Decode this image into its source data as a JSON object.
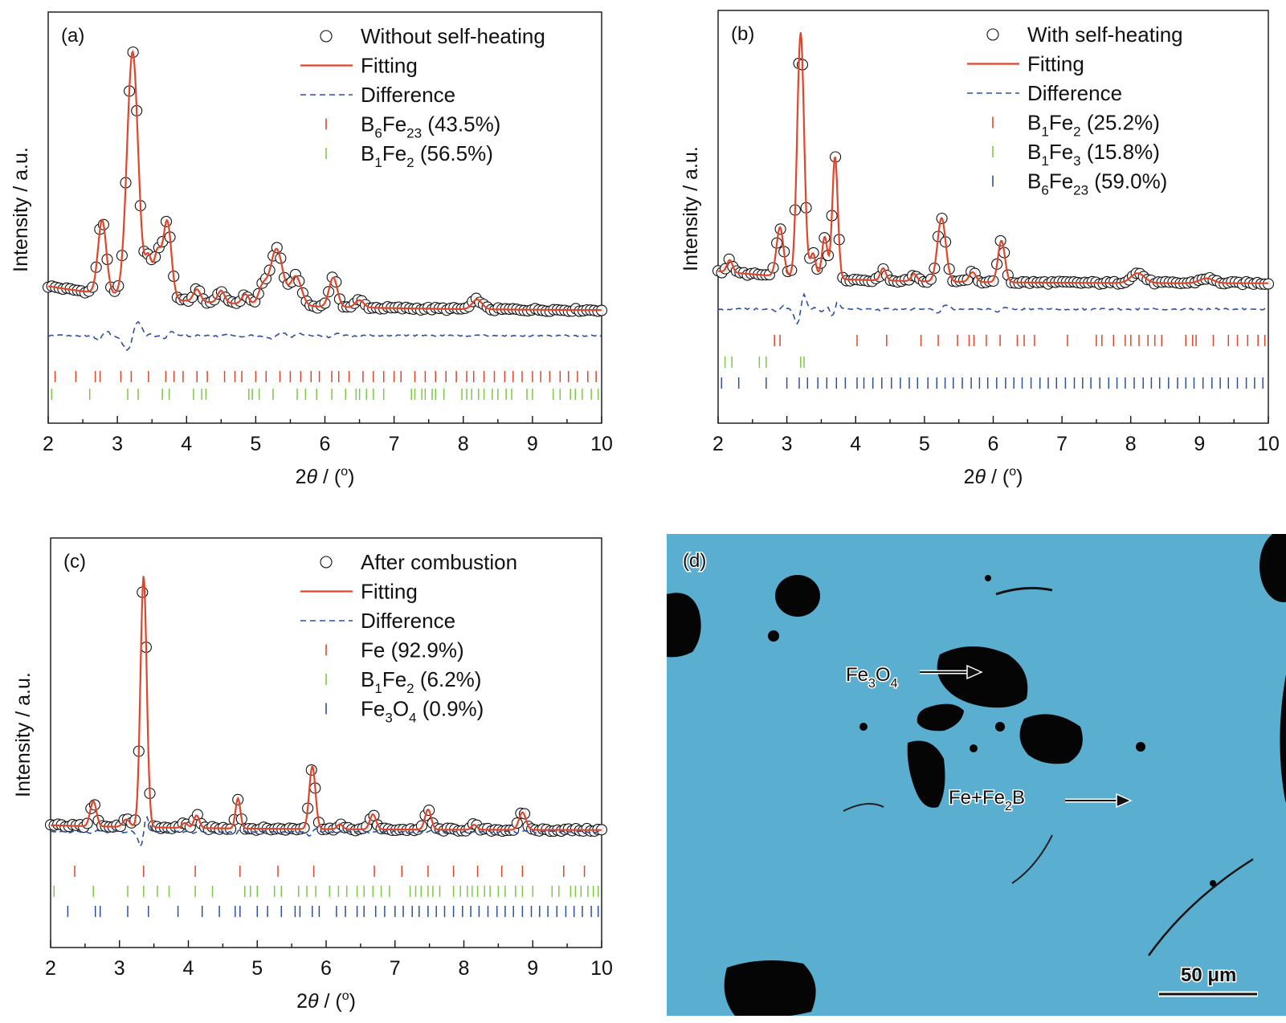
{
  "chart_data": [
    {
      "type": "line",
      "panel_label": "(a)",
      "xlabel_prefix": "2",
      "xlabel_theta": "θ",
      "xlabel_suffix": " / (",
      "xlabel_degree": "o",
      "xlabel_close": ")",
      "ylabel": "Intensity / a.u.",
      "xlim": [
        2,
        10
      ],
      "xticks": [
        "2",
        "3",
        "4",
        "5",
        "6",
        "7",
        "8",
        "9",
        "10"
      ],
      "legend_position": "top-right",
      "legend": {
        "observed": "Without self-heating",
        "fitting": "Fitting",
        "difference": "Difference",
        "phases": [
          {
            "base": "B",
            "sub1": "6",
            "mid": "Fe",
            "sub2": "23",
            "tail": " (43.5%)",
            "color": "#e0452a"
          },
          {
            "base": "B",
            "sub1": "1",
            "mid": "Fe",
            "sub2": "2",
            "tail": " (56.5%)",
            "color": "#7ac943"
          }
        ]
      },
      "peaks": [
        {
          "x": 2.78,
          "y": 0.3,
          "w": 0.06
        },
        {
          "x": 3.22,
          "y": 1.0,
          "w": 0.08
        },
        {
          "x": 3.45,
          "y": 0.16,
          "w": 0.05
        },
        {
          "x": 3.58,
          "y": 0.18,
          "w": 0.05
        },
        {
          "x": 3.72,
          "y": 0.32,
          "w": 0.06
        },
        {
          "x": 4.15,
          "y": 0.05,
          "w": 0.05
        },
        {
          "x": 4.5,
          "y": 0.05,
          "w": 0.05
        },
        {
          "x": 4.85,
          "y": 0.04,
          "w": 0.05
        },
        {
          "x": 5.1,
          "y": 0.07,
          "w": 0.06
        },
        {
          "x": 5.3,
          "y": 0.23,
          "w": 0.09
        },
        {
          "x": 5.58,
          "y": 0.12,
          "w": 0.08
        },
        {
          "x": 6.12,
          "y": 0.12,
          "w": 0.06
        },
        {
          "x": 6.5,
          "y": 0.03,
          "w": 0.06
        },
        {
          "x": 8.2,
          "y": 0.04,
          "w": 0.07
        }
      ],
      "background": {
        "y_start": 0.1,
        "y_end": 0.0,
        "knee": 0.6
      },
      "phase_ticks": [
        [
          2.1,
          2.4,
          2.68,
          2.75,
          3.05,
          3.2,
          3.45,
          3.7,
          3.82,
          3.95,
          4.15,
          4.3,
          4.55,
          4.7,
          4.8,
          5.0,
          5.15,
          5.35,
          5.5,
          5.65,
          5.8,
          5.92,
          6.1,
          6.2,
          6.35,
          6.55,
          6.7,
          6.85,
          7.0,
          7.1,
          7.3,
          7.45,
          7.6,
          7.75,
          7.9,
          8.05,
          8.15,
          8.3,
          8.45,
          8.6,
          8.72,
          8.85,
          9.0,
          9.12,
          9.25,
          9.4,
          9.52,
          9.65,
          9.8,
          9.92
        ],
        [
          2.05,
          2.6,
          3.15,
          3.3,
          3.65,
          3.75,
          4.1,
          4.22,
          4.28,
          4.9,
          4.95,
          5.05,
          5.25,
          5.6,
          5.72,
          5.88,
          6.1,
          6.3,
          6.45,
          6.5,
          6.6,
          6.7,
          6.85,
          7.25,
          7.3,
          7.4,
          7.45,
          7.55,
          7.6,
          7.72,
          7.98,
          8.05,
          8.12,
          8.22,
          8.3,
          8.42,
          8.5,
          8.62,
          8.7,
          8.92,
          9.0,
          9.3,
          9.4,
          9.55,
          9.62,
          9.72,
          9.85,
          9.95
        ]
      ]
    },
    {
      "type": "line",
      "panel_label": "(b)",
      "xlabel_prefix": "2",
      "xlabel_theta": "θ",
      "xlabel_suffix": " / (",
      "xlabel_degree": "o",
      "xlabel_close": ")",
      "ylabel": "Intensity / a.u.",
      "xlim": [
        2,
        10
      ],
      "xticks": [
        "2",
        "3",
        "4",
        "5",
        "6",
        "7",
        "8",
        "9",
        "10"
      ],
      "legend_position": "top-right",
      "legend": {
        "observed": "With self-heating",
        "fitting": "Fitting",
        "difference": "Difference",
        "phases": [
          {
            "base": "B",
            "sub1": "1",
            "mid": "Fe",
            "sub2": "2",
            "tail": " (25.2%)",
            "color": "#e0452a"
          },
          {
            "base": "B",
            "sub1": "1",
            "mid": "Fe",
            "sub2": "3",
            "tail": " (15.8%)",
            "color": "#7ac943"
          },
          {
            "base": "B",
            "sub1": "6",
            "mid": "Fe",
            "sub2": "23",
            "tail": " (59.0%)",
            "color": "#2d4fa0"
          }
        ]
      },
      "peaks": [
        {
          "x": 2.17,
          "y": 0.05,
          "w": 0.04
        },
        {
          "x": 2.9,
          "y": 0.2,
          "w": 0.05
        },
        {
          "x": 3.2,
          "y": 1.0,
          "w": 0.05
        },
        {
          "x": 3.38,
          "y": 0.1,
          "w": 0.04
        },
        {
          "x": 3.55,
          "y": 0.17,
          "w": 0.04
        },
        {
          "x": 3.7,
          "y": 0.5,
          "w": 0.04
        },
        {
          "x": 4.4,
          "y": 0.05,
          "w": 0.04
        },
        {
          "x": 4.85,
          "y": 0.03,
          "w": 0.04
        },
        {
          "x": 5.25,
          "y": 0.26,
          "w": 0.06
        },
        {
          "x": 5.7,
          "y": 0.04,
          "w": 0.05
        },
        {
          "x": 6.12,
          "y": 0.17,
          "w": 0.05
        },
        {
          "x": 8.1,
          "y": 0.04,
          "w": 0.1
        },
        {
          "x": 9.1,
          "y": 0.02,
          "w": 0.1
        }
      ],
      "background": {
        "y_start": 0.08,
        "y_end": 0.03,
        "knee": 0.8
      },
      "phase_ticks": [
        [
          2.82,
          2.9,
          4.02,
          4.45,
          4.95,
          5.2,
          5.48,
          5.65,
          5.72,
          5.9,
          6.1,
          6.35,
          6.45,
          6.6,
          7.08,
          7.5,
          7.58,
          7.75,
          7.92,
          8.0,
          8.12,
          8.25,
          8.35,
          8.45,
          8.8,
          8.9,
          8.95,
          9.2,
          9.42,
          9.55,
          9.7,
          9.85,
          9.95
        ],
        [
          2.1,
          2.2,
          2.6,
          2.7,
          3.2,
          3.25
        ],
        [
          2.05,
          2.3,
          2.7,
          3.0,
          3.18,
          3.3,
          3.45,
          3.58,
          3.72,
          3.85,
          4.02,
          4.12,
          4.25,
          4.38,
          4.52,
          4.65,
          4.78,
          4.9,
          5.05,
          5.18,
          5.3,
          5.42,
          5.55,
          5.68,
          5.8,
          5.92,
          6.05,
          6.18,
          6.3,
          6.42,
          6.55,
          6.68,
          6.8,
          6.92,
          7.05,
          7.18,
          7.3,
          7.42,
          7.55,
          7.68,
          7.8,
          7.92,
          8.05,
          8.18,
          8.3,
          8.42,
          8.55,
          8.68,
          8.8,
          8.92,
          9.05,
          9.18,
          9.3,
          9.42,
          9.55,
          9.68,
          9.8,
          9.92
        ]
      ]
    },
    {
      "type": "line",
      "panel_label": "(c)",
      "xlabel_prefix": "2",
      "xlabel_theta": "θ",
      "xlabel_suffix": " / (",
      "xlabel_degree": "o",
      "xlabel_close": ")",
      "ylabel": "Intensity / a.u.",
      "xlim": [
        2,
        10
      ],
      "xticks": [
        "2",
        "3",
        "4",
        "5",
        "6",
        "7",
        "8",
        "9",
        "10"
      ],
      "legend_position": "top-right",
      "legend": {
        "observed": "After combustion",
        "fitting": "Fitting",
        "difference": "Difference",
        "phases": [
          {
            "base": "Fe",
            "sub1": "",
            "mid": "",
            "sub2": "",
            "tail": " (92.9%)",
            "color": "#e0452a"
          },
          {
            "base": "B",
            "sub1": "1",
            "mid": "Fe",
            "sub2": "2",
            "tail": " (6.2%)",
            "color": "#7ac943"
          },
          {
            "base": "Fe",
            "sub1": "3",
            "mid": "O",
            "sub2": "4",
            "tail": " (0.9%)",
            "color": "#2d4fa0"
          }
        ]
      },
      "peaks": [
        {
          "x": 2.62,
          "y": 0.1,
          "w": 0.045
        },
        {
          "x": 3.1,
          "y": 0.03,
          "w": 0.05
        },
        {
          "x": 3.35,
          "y": 1.0,
          "w": 0.045
        },
        {
          "x": 3.95,
          "y": 0.02,
          "w": 0.04
        },
        {
          "x": 4.12,
          "y": 0.05,
          "w": 0.04
        },
        {
          "x": 4.72,
          "y": 0.12,
          "w": 0.035
        },
        {
          "x": 5.8,
          "y": 0.25,
          "w": 0.045
        },
        {
          "x": 6.2,
          "y": 0.02,
          "w": 0.04
        },
        {
          "x": 6.68,
          "y": 0.06,
          "w": 0.045
        },
        {
          "x": 7.48,
          "y": 0.08,
          "w": 0.045
        },
        {
          "x": 8.15,
          "y": 0.02,
          "w": 0.04
        },
        {
          "x": 8.85,
          "y": 0.07,
          "w": 0.05
        }
      ],
      "background": {
        "y_start": 0.02,
        "y_end": 0.0,
        "knee": 0.5
      },
      "phase_ticks": [
        [
          2.35,
          3.35,
          4.1,
          4.75,
          5.3,
          5.82,
          6.7,
          7.1,
          7.48,
          7.85,
          8.2,
          8.55,
          8.85,
          9.45,
          9.75
        ],
        [
          2.05,
          2.62,
          3.12,
          3.35,
          3.55,
          3.72,
          4.1,
          4.35,
          4.82,
          4.9,
          5.0,
          5.25,
          5.35,
          5.6,
          5.72,
          5.85,
          6.05,
          6.18,
          6.3,
          6.45,
          6.55,
          6.68,
          6.8,
          6.92,
          7.22,
          7.3,
          7.38,
          7.48,
          7.55,
          7.65,
          7.85,
          7.95,
          8.05,
          8.12,
          8.2,
          8.3,
          8.38,
          8.5,
          8.6,
          8.75,
          8.85,
          9.0,
          9.28,
          9.38,
          9.55,
          9.62,
          9.7,
          9.8,
          9.88,
          9.95
        ],
        [
          2.25,
          2.65,
          2.72,
          3.12,
          3.42,
          3.85,
          4.2,
          4.45,
          4.68,
          4.75,
          5.0,
          5.15,
          5.35,
          5.55,
          5.62,
          5.8,
          5.9,
          6.15,
          6.28,
          6.45,
          6.55,
          6.72,
          6.85,
          7.0,
          7.12,
          7.25,
          7.35,
          7.48,
          7.6,
          7.72,
          7.85,
          7.98,
          8.1,
          8.22,
          8.35,
          8.48,
          8.6,
          8.72,
          8.85,
          8.98,
          9.1,
          9.22,
          9.35,
          9.48,
          9.6,
          9.72,
          9.85,
          9.95
        ]
      ]
    }
  ],
  "micrograph": {
    "panel_label": "(d)",
    "label_fe3o4": {
      "base": "Fe",
      "sub1": "3",
      "mid": "O",
      "sub2": "4"
    },
    "label_fe_fe2b": {
      "base": "Fe+Fe",
      "sub1": "2",
      "mid": "B"
    },
    "scale_bar": "50 μm",
    "background_color": "#5aaed0",
    "dark_phase_color": "#050505"
  }
}
